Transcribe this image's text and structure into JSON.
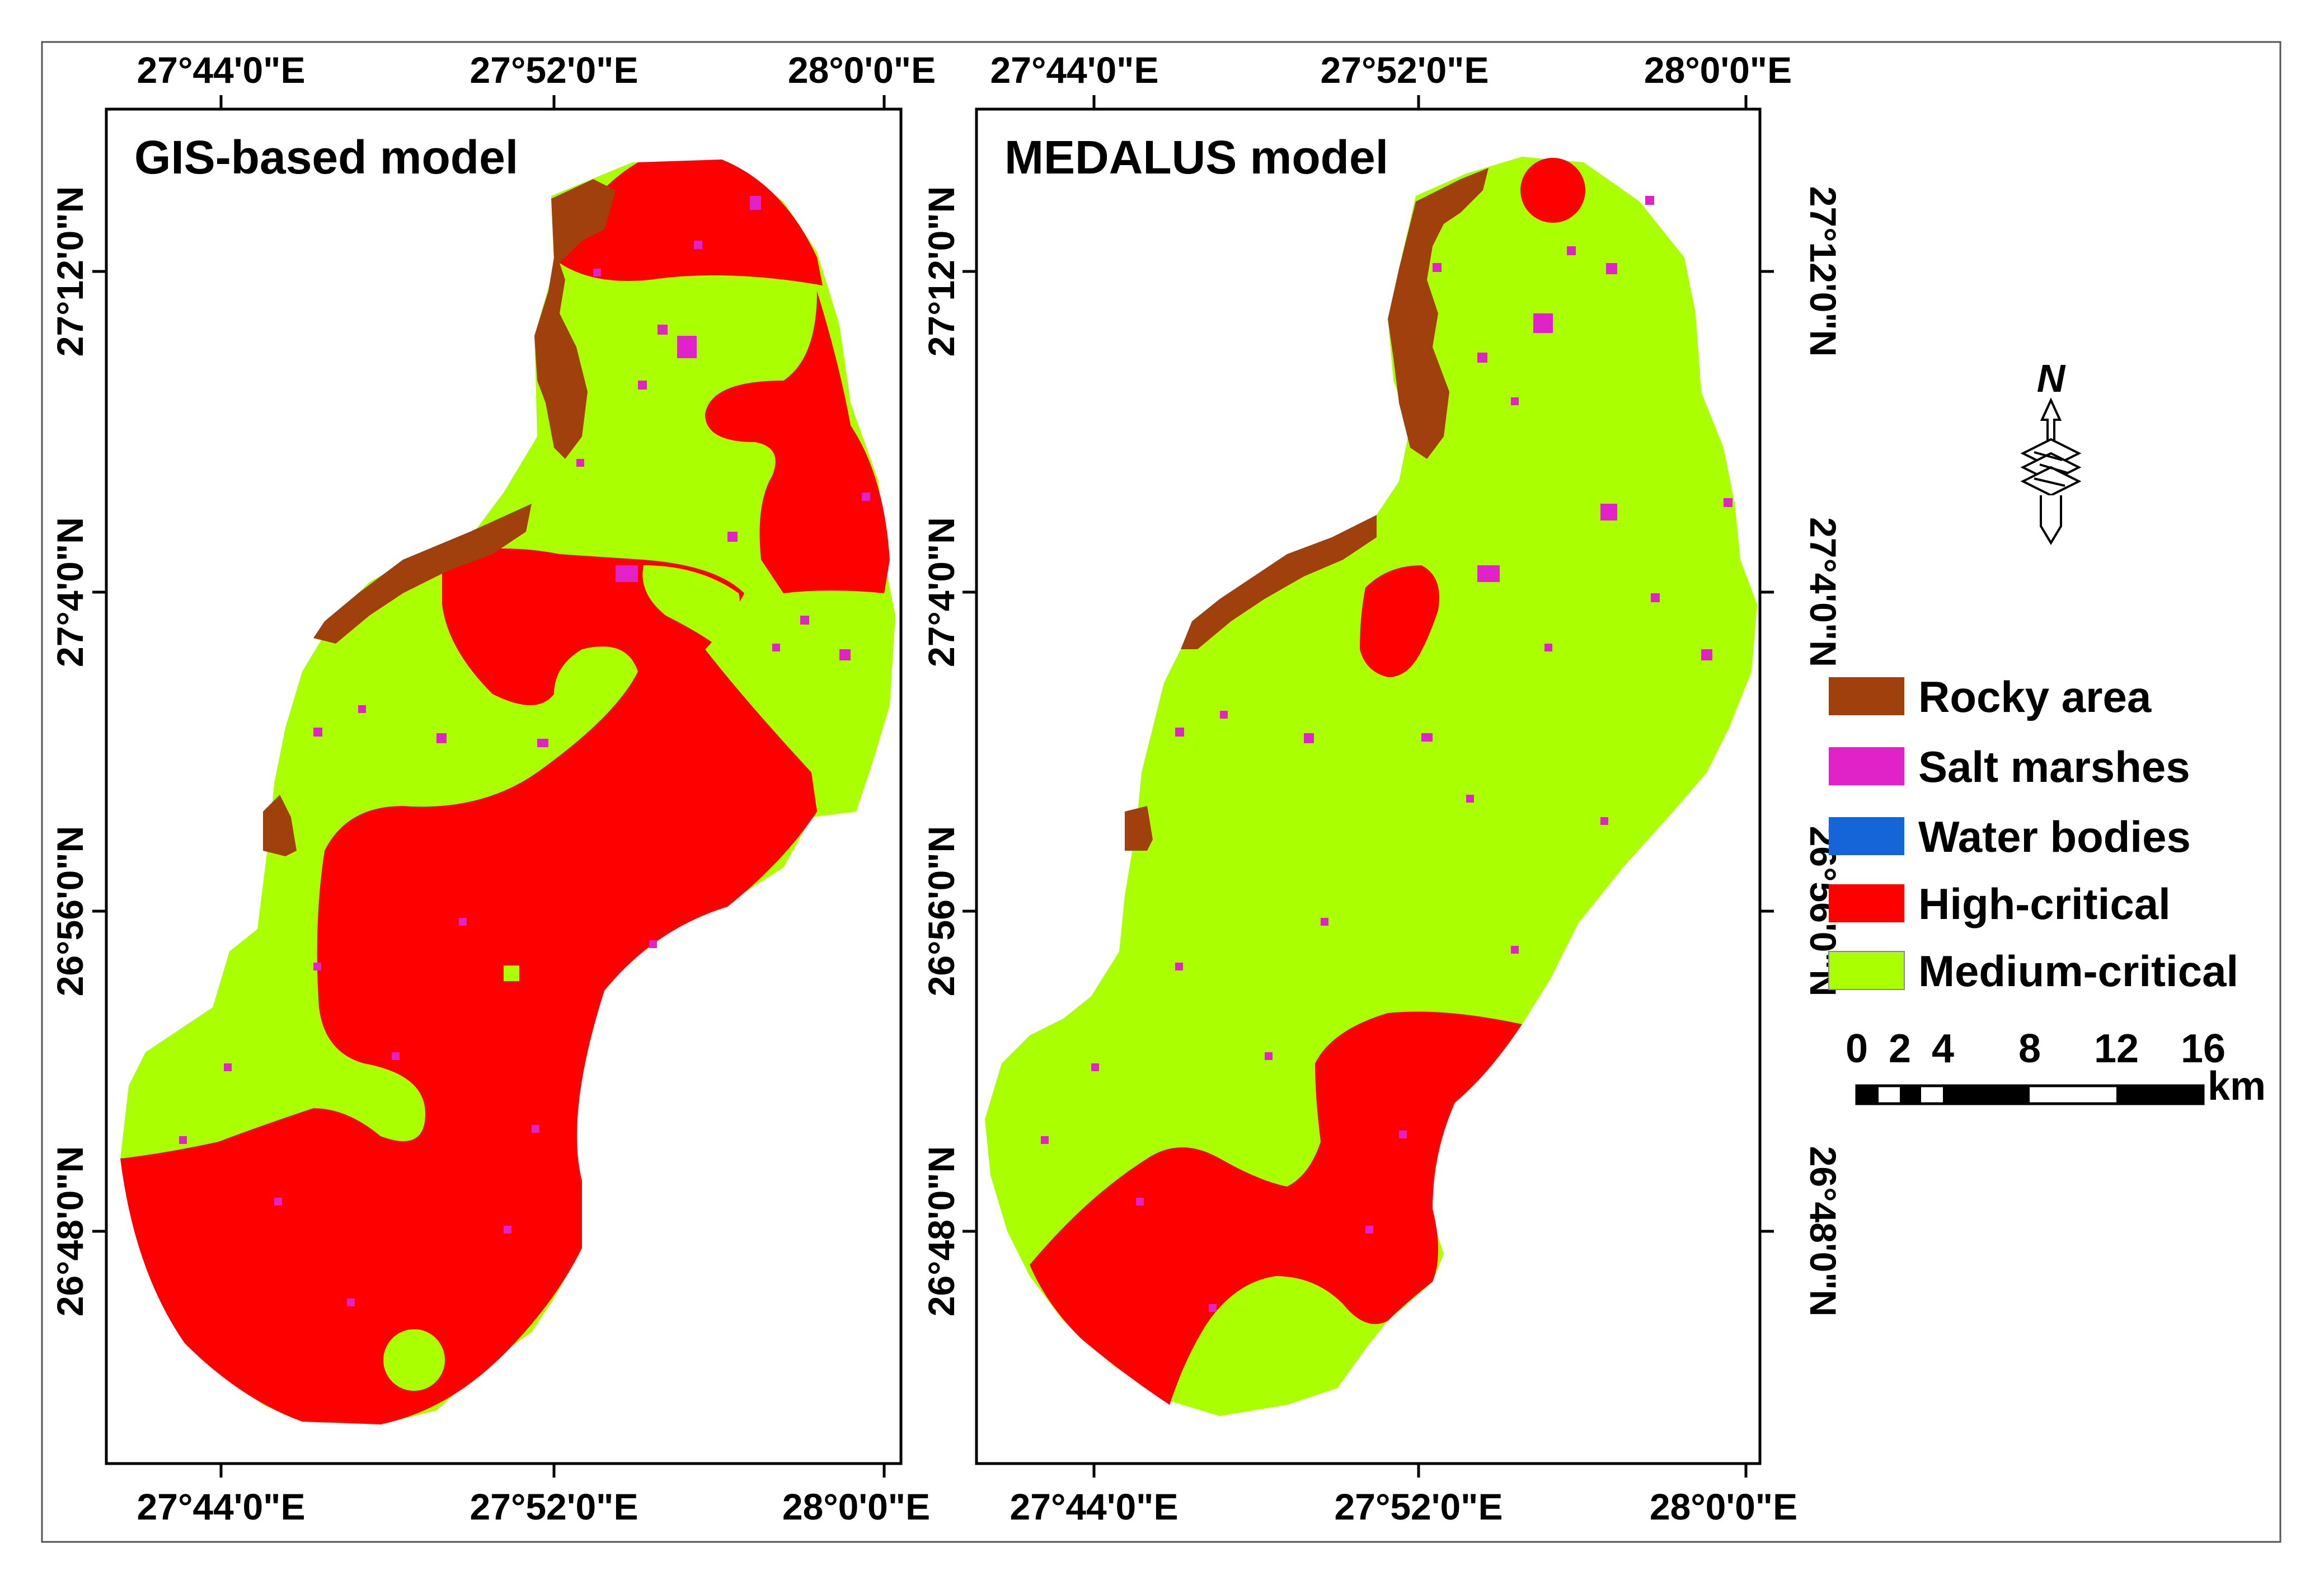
{
  "colors": {
    "rocky": "#a0400d",
    "salt": "#e022c8",
    "water": "#1565d8",
    "high": "#ff0000",
    "medium": "#aaff00",
    "frame": "#000000"
  },
  "icon": "north-arrow-icon",
  "north_label": "N",
  "panels": [
    {
      "title": "GIS-based model",
      "top_labels": [
        "27°44'0\"E",
        "27°52'0\"E",
        "28°0'0\"E"
      ],
      "bottom_labels": [
        "27°44'0\"E",
        "27°52'0\"E",
        "28°0'0\"E"
      ],
      "left_labels": [
        "27°12'0\"N",
        "27°4'0\"N",
        "26°56'0\"N",
        "26°48'0\"N"
      ]
    },
    {
      "title": "MEDALUS model",
      "top_labels": [
        "27°44'0\"E",
        "27°52'0\"E",
        "28°0'0\"E"
      ],
      "bottom_labels": [
        "27°44'0\"E",
        "27°52'0\"E",
        "28°0'0\"E"
      ],
      "left_labels": [
        "27°12'0\"N",
        "27°4'0\"N",
        "26°56'0\"N",
        "26°48'0\"N"
      ],
      "right_labels": [
        "27°12'0\"N",
        "27°4'0\"N",
        "26°56'0\"N",
        "26°48'0\"N"
      ]
    }
  ],
  "legend": [
    {
      "label": "Rocky area",
      "color": "#a0400d"
    },
    {
      "label": "Salt marshes",
      "color": "#e022c8"
    },
    {
      "label": "Water bodies",
      "color": "#1565d8"
    },
    {
      "label": "High-critical",
      "color": "#ff0000"
    },
    {
      "label": "Medium-critical",
      "color": "#aaff00"
    }
  ],
  "scale_bar": {
    "ticks": [
      "0",
      "2",
      "4",
      "8",
      "12",
      "16"
    ],
    "unit": "km"
  }
}
